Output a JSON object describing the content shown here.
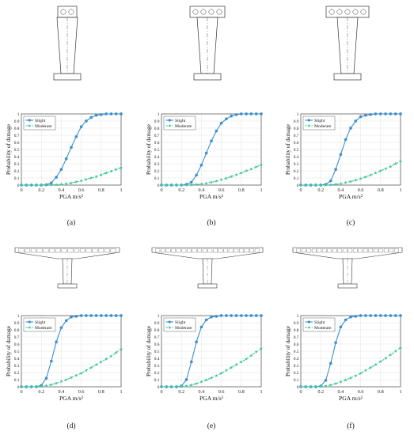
{
  "chart_data": [
    {
      "type": "line",
      "panel_label": "(a)",
      "xlabel": "PGA  m/s²",
      "ylabel": "Probability of damage",
      "xlim": [
        0,
        1
      ],
      "ylim": [
        0,
        1
      ],
      "xticks": [
        "0",
        "0.2",
        "0.4",
        "0.6",
        "0.8",
        "1"
      ],
      "yticks": [
        "0",
        "0.1",
        "0.2",
        "0.3",
        "0.4",
        "0.5",
        "0.6",
        "0.7",
        "0.8",
        "0.9",
        "1"
      ],
      "grid": true,
      "legend_position": "top-left",
      "x": [
        0,
        0.05,
        0.1,
        0.15,
        0.2,
        0.25,
        0.3,
        0.35,
        0.4,
        0.45,
        0.5,
        0.55,
        0.6,
        0.65,
        0.7,
        0.75,
        0.8,
        0.85,
        0.9,
        0.95,
        1
      ],
      "series": [
        {
          "name": "Slight",
          "style": "solid",
          "color": "#3b8fd0",
          "marker": "circle",
          "values": [
            0,
            0,
            0,
            0,
            0,
            0.005,
            0.03,
            0.11,
            0.22,
            0.37,
            0.53,
            0.68,
            0.82,
            0.9,
            0.95,
            0.98,
            0.99,
            1.0,
            1.0,
            1.0,
            1.0
          ]
        },
        {
          "name": "Moderate",
          "style": "dashed",
          "color": "#3fc79a",
          "marker": "star",
          "values": [
            0,
            0,
            0,
            0,
            0,
            0,
            0.002,
            0.005,
            0.01,
            0.02,
            0.03,
            0.045,
            0.06,
            0.08,
            0.1,
            0.12,
            0.145,
            0.17,
            0.195,
            0.22,
            0.245
          ]
        }
      ]
    },
    {
      "type": "line",
      "panel_label": "(b)",
      "xlabel": "PGA  m/s²",
      "ylabel": "Probability of damage",
      "xlim": [
        0,
        1
      ],
      "ylim": [
        0,
        1
      ],
      "xticks": [
        "0",
        "0.2",
        "0.4",
        "0.6",
        "0.8",
        "1"
      ],
      "yticks": [
        "0",
        "0.1",
        "0.2",
        "0.3",
        "0.4",
        "0.5",
        "0.6",
        "0.7",
        "0.8",
        "0.9",
        "1"
      ],
      "grid": true,
      "legend_position": "top-left",
      "x": [
        0,
        0.05,
        0.1,
        0.15,
        0.2,
        0.25,
        0.3,
        0.35,
        0.4,
        0.45,
        0.5,
        0.55,
        0.6,
        0.65,
        0.7,
        0.75,
        0.8,
        0.85,
        0.9,
        0.95,
        1
      ],
      "series": [
        {
          "name": "Slight",
          "style": "solid",
          "color": "#3b8fd0",
          "marker": "circle",
          "values": [
            0,
            0,
            0,
            0,
            0,
            0.01,
            0.04,
            0.14,
            0.28,
            0.45,
            0.62,
            0.76,
            0.87,
            0.93,
            0.97,
            0.99,
            1.0,
            1.0,
            1.0,
            1.0,
            1.0
          ]
        },
        {
          "name": "Moderate",
          "style": "dashed",
          "color": "#3fc79a",
          "marker": "star",
          "values": [
            0,
            0,
            0,
            0,
            0,
            0,
            0.003,
            0.008,
            0.015,
            0.025,
            0.04,
            0.055,
            0.075,
            0.095,
            0.12,
            0.145,
            0.17,
            0.2,
            0.225,
            0.255,
            0.285
          ]
        }
      ]
    },
    {
      "type": "line",
      "panel_label": "(c)",
      "xlabel": "PGA  m/s²",
      "ylabel": "Probability of damage",
      "xlim": [
        0,
        1
      ],
      "ylim": [
        0,
        1
      ],
      "xticks": [
        "0",
        "0.2",
        "0.4",
        "0.6",
        "0.8",
        "1"
      ],
      "yticks": [
        "0",
        "0.1",
        "0.2",
        "0.3",
        "0.4",
        "0.5",
        "0.6",
        "0.7",
        "0.8",
        "0.9",
        "1"
      ],
      "grid": true,
      "legend_position": "top-left",
      "x": [
        0,
        0.05,
        0.1,
        0.15,
        0.2,
        0.25,
        0.3,
        0.35,
        0.4,
        0.45,
        0.5,
        0.55,
        0.6,
        0.65,
        0.7,
        0.75,
        0.8,
        0.85,
        0.9,
        0.95,
        1
      ],
      "series": [
        {
          "name": "Slight",
          "style": "solid",
          "color": "#3b8fd0",
          "marker": "circle",
          "values": [
            0,
            0,
            0,
            0,
            0,
            0.01,
            0.06,
            0.22,
            0.43,
            0.64,
            0.8,
            0.9,
            0.96,
            0.98,
            0.99,
            1.0,
            1.0,
            1.0,
            1.0,
            1.0,
            1.0
          ]
        },
        {
          "name": "Moderate",
          "style": "dashed",
          "color": "#3fc79a",
          "marker": "star",
          "values": [
            0,
            0,
            0,
            0,
            0,
            0,
            0.004,
            0.01,
            0.02,
            0.035,
            0.05,
            0.07,
            0.09,
            0.115,
            0.14,
            0.17,
            0.2,
            0.23,
            0.26,
            0.3,
            0.335
          ]
        }
      ]
    },
    {
      "type": "line",
      "panel_label": "(d)",
      "xlabel": "PGA  m/s²",
      "ylabel": "Probability of damage",
      "xlim": [
        0,
        1
      ],
      "ylim": [
        0,
        1
      ],
      "xticks": [
        "0",
        "0.2",
        "0.4",
        "0.6",
        "0.8",
        "1"
      ],
      "yticks": [
        "0",
        "0.1",
        "0.2",
        "0.3",
        "0.4",
        "0.5",
        "0.6",
        "0.7",
        "0.8",
        "0.9",
        "1"
      ],
      "grid": true,
      "legend_position": "top-left",
      "x": [
        0,
        0.05,
        0.1,
        0.15,
        0.2,
        0.25,
        0.3,
        0.35,
        0.4,
        0.45,
        0.5,
        0.55,
        0.6,
        0.65,
        0.7,
        0.75,
        0.8,
        0.85,
        0.9,
        0.95,
        1
      ],
      "series": [
        {
          "name": "Slight",
          "style": "solid",
          "color": "#3b8fd0",
          "marker": "circle",
          "values": [
            0,
            0,
            0,
            0,
            0.02,
            0.12,
            0.36,
            0.63,
            0.83,
            0.93,
            0.98,
            0.99,
            1.0,
            1.0,
            1.0,
            1.0,
            1.0,
            1.0,
            1.0,
            1.0,
            1.0
          ]
        },
        {
          "name": "Moderate",
          "style": "dashed",
          "color": "#3fc79a",
          "marker": "star",
          "values": [
            0,
            0,
            0,
            0,
            0.005,
            0.015,
            0.03,
            0.05,
            0.075,
            0.1,
            0.13,
            0.16,
            0.19,
            0.23,
            0.27,
            0.31,
            0.35,
            0.39,
            0.43,
            0.48,
            0.53
          ]
        }
      ]
    },
    {
      "type": "line",
      "panel_label": "(e)",
      "xlabel": "PGA  m/s²",
      "ylabel": "Probability of damage",
      "xlim": [
        0,
        1
      ],
      "ylim": [
        0,
        1
      ],
      "xticks": [
        "0",
        "0.2",
        "0.4",
        "0.6",
        "0.8",
        "1"
      ],
      "yticks": [
        "0",
        "0.1",
        "0.2",
        "0.3",
        "0.4",
        "0.5",
        "0.6",
        "0.7",
        "0.8",
        "0.9",
        "1"
      ],
      "grid": true,
      "legend_position": "top-left",
      "x": [
        0,
        0.05,
        0.1,
        0.15,
        0.2,
        0.25,
        0.3,
        0.35,
        0.4,
        0.45,
        0.5,
        0.55,
        0.6,
        0.65,
        0.7,
        0.75,
        0.8,
        0.85,
        0.9,
        0.95,
        1
      ],
      "series": [
        {
          "name": "Slight",
          "style": "solid",
          "color": "#3b8fd0",
          "marker": "circle",
          "values": [
            0,
            0,
            0,
            0,
            0.01,
            0.1,
            0.35,
            0.63,
            0.84,
            0.94,
            0.98,
            0.99,
            1.0,
            1.0,
            1.0,
            1.0,
            1.0,
            1.0,
            1.0,
            1.0,
            1.0
          ]
        },
        {
          "name": "Moderate",
          "style": "dashed",
          "color": "#3fc79a",
          "marker": "star",
          "values": [
            0,
            0,
            0,
            0,
            0.005,
            0.012,
            0.025,
            0.045,
            0.07,
            0.095,
            0.125,
            0.155,
            0.19,
            0.23,
            0.27,
            0.31,
            0.35,
            0.39,
            0.44,
            0.49,
            0.54
          ]
        }
      ]
    },
    {
      "type": "line",
      "panel_label": "(f)",
      "xlabel": "PGA  m/s²",
      "ylabel": "Probability of damage",
      "xlim": [
        0,
        1
      ],
      "ylim": [
        0,
        1
      ],
      "xticks": [
        "0",
        "0.2",
        "0.4",
        "0.6",
        "0.8",
        "1"
      ],
      "yticks": [
        "0",
        "0.1",
        "0.2",
        "0.3",
        "0.4",
        "0.5",
        "0.6",
        "0.7",
        "0.8",
        "0.9",
        "1"
      ],
      "grid": true,
      "legend_position": "top-left",
      "x": [
        0,
        0.05,
        0.1,
        0.15,
        0.2,
        0.25,
        0.3,
        0.35,
        0.4,
        0.45,
        0.5,
        0.55,
        0.6,
        0.65,
        0.7,
        0.75,
        0.8,
        0.85,
        0.9,
        0.95,
        1
      ],
      "series": [
        {
          "name": "Slight",
          "style": "solid",
          "color": "#3b8fd0",
          "marker": "circle",
          "values": [
            0,
            0,
            0,
            0,
            0.01,
            0.09,
            0.33,
            0.62,
            0.84,
            0.94,
            0.98,
            0.99,
            1.0,
            1.0,
            1.0,
            1.0,
            1.0,
            1.0,
            1.0,
            1.0,
            1.0
          ]
        },
        {
          "name": "Moderate",
          "style": "dashed",
          "color": "#3fc79a",
          "marker": "star",
          "values": [
            0,
            0,
            0,
            0,
            0.005,
            0.012,
            0.025,
            0.045,
            0.07,
            0.095,
            0.125,
            0.155,
            0.19,
            0.23,
            0.27,
            0.31,
            0.355,
            0.4,
            0.45,
            0.5,
            0.55
          ]
        }
      ]
    }
  ]
}
